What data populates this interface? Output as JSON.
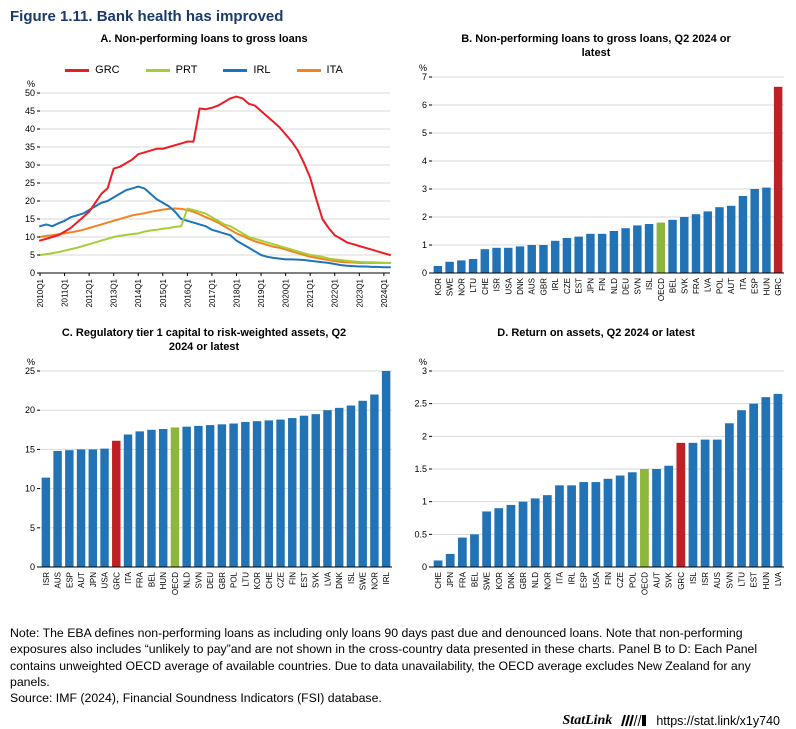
{
  "figure": {
    "title": "Figure 1.11. Bank health has improved"
  },
  "colors": {
    "bar": "#2273b5",
    "grc_red": "#bf2026",
    "oecd_green": "#8db63c",
    "title_navy": "#1a3a6b"
  },
  "chart_data": [
    {
      "panel": "A",
      "type": "line",
      "title": "A. Non-performing loans to gross loans",
      "ylabel": "%",
      "ylim": [
        0,
        50
      ],
      "ytick_step": 5,
      "x_tick_every": 4,
      "x_tick_labels": [
        "2010Q1",
        "2011Q1",
        "2012Q1",
        "2013Q1",
        "2014Q1",
        "2015Q1",
        "2016Q1",
        "2017Q1",
        "2018Q1",
        "2019Q1",
        "2020Q1",
        "2021Q1",
        "2022Q1",
        "2023Q1",
        "2024Q1"
      ],
      "legend_position": "top",
      "grid": true,
      "series": [
        {
          "name": "GRC",
          "color": "#ed1c24",
          "values": [
            9.0,
            9.5,
            10.0,
            10.5,
            11.5,
            12.5,
            14.0,
            15.5,
            17.0,
            19.5,
            22.0,
            23.5,
            29.0,
            29.5,
            30.5,
            31.5,
            33.0,
            33.5,
            34.0,
            34.5,
            34.5,
            35.0,
            35.5,
            36.0,
            36.5,
            36.5,
            45.7,
            45.5,
            45.9,
            46.5,
            47.5,
            48.5,
            49.0,
            48.5,
            47.0,
            46.5,
            45.0,
            43.5,
            42.0,
            40.5,
            38.5,
            36.5,
            34.0,
            30.5,
            26.5,
            20.5,
            15.0,
            12.5,
            10.5,
            9.5,
            8.5,
            8.0,
            7.5,
            7.0,
            6.5,
            6.0,
            5.5,
            5.0
          ]
        },
        {
          "name": "PRT",
          "color": "#a6ce39",
          "values": [
            5.0,
            5.2,
            5.5,
            5.8,
            6.2,
            6.6,
            7.0,
            7.5,
            8.0,
            8.5,
            9.0,
            9.5,
            10.0,
            10.3,
            10.6,
            10.8,
            11.0,
            11.5,
            11.8,
            12.0,
            12.3,
            12.5,
            12.8,
            13.0,
            17.9,
            17.5,
            17.0,
            16.5,
            15.5,
            14.5,
            13.5,
            13.0,
            12.0,
            11.0,
            10.0,
            9.5,
            9.0,
            8.5,
            8.0,
            7.5,
            7.0,
            6.5,
            6.0,
            5.5,
            5.0,
            4.8,
            4.5,
            4.0,
            3.8,
            3.6,
            3.4,
            3.2,
            3.1,
            3.0,
            3.0,
            2.9,
            2.8,
            2.8
          ]
        },
        {
          "name": "IRL",
          "color": "#1b75bb",
          "values": [
            13.0,
            13.5,
            13.0,
            13.8,
            14.5,
            15.5,
            16.0,
            16.5,
            17.5,
            18.5,
            19.5,
            20.0,
            21.0,
            22.0,
            23.0,
            23.5,
            24.0,
            23.5,
            22.0,
            20.5,
            19.5,
            18.5,
            17.0,
            15.0,
            14.5,
            14.0,
            13.5,
            13.0,
            12.0,
            11.5,
            11.0,
            10.5,
            9.0,
            8.0,
            7.0,
            6.0,
            5.0,
            4.5,
            4.2,
            4.0,
            3.8,
            3.8,
            3.7,
            3.6,
            3.4,
            3.2,
            3.0,
            2.8,
            2.5,
            2.2,
            2.0,
            1.9,
            1.8,
            1.8,
            1.7,
            1.7,
            1.6,
            1.6
          ]
        },
        {
          "name": "ITA",
          "color": "#f58220",
          "values": [
            10.0,
            10.3,
            10.5,
            10.8,
            11.0,
            11.3,
            11.6,
            12.0,
            12.5,
            13.0,
            13.5,
            14.0,
            14.5,
            15.0,
            15.5,
            16.0,
            16.3,
            16.6,
            17.0,
            17.3,
            17.6,
            17.8,
            17.9,
            17.8,
            17.5,
            17.0,
            16.3,
            15.5,
            14.8,
            14.0,
            13.0,
            12.0,
            11.0,
            10.3,
            9.5,
            8.8,
            8.3,
            7.8,
            7.3,
            7.0,
            6.5,
            6.0,
            5.5,
            5.0,
            4.5,
            4.2,
            3.9,
            3.6,
            3.3,
            3.1,
            3.0,
            2.9,
            2.8,
            2.8,
            2.8,
            2.8,
            2.8,
            2.8
          ]
        }
      ]
    },
    {
      "panel": "B",
      "type": "bar",
      "title": "B. Non-performing loans to gross loans, Q2 2024 or latest",
      "ylabel": "%",
      "ylim": [
        0,
        7
      ],
      "ytick_step": 1,
      "grid": true,
      "categories": [
        "KOR",
        "SWE",
        "NOR",
        "LTU",
        "CHE",
        "ISR",
        "USA",
        "DNK",
        "AUS",
        "GBR",
        "IRL",
        "CZE",
        "EST",
        "JPN",
        "FIN",
        "NLD",
        "DEU",
        "SVN",
        "ISL",
        "OECD",
        "BEL",
        "SVK",
        "FRA",
        "LVA",
        "POL",
        "AUT",
        "ITA",
        "ESP",
        "HUN",
        "GRC"
      ],
      "values": [
        0.25,
        0.4,
        0.45,
        0.5,
        0.85,
        0.9,
        0.9,
        0.95,
        1.0,
        1.0,
        1.15,
        1.25,
        1.3,
        1.4,
        1.4,
        1.5,
        1.6,
        1.7,
        1.75,
        1.8,
        1.9,
        2.0,
        2.1,
        2.2,
        2.35,
        2.4,
        2.75,
        3.0,
        3.05,
        6.65
      ],
      "highlight": {
        "OECD": "#8db63c",
        "GRC": "#bf2026"
      }
    },
    {
      "panel": "C",
      "type": "bar",
      "title": "C. Regulatory tier 1 capital to risk-weighted assets, Q2 2024 or latest",
      "ylabel": "%",
      "ylim": [
        0,
        25
      ],
      "ytick_step": 5,
      "grid": true,
      "categories": [
        "ISR",
        "AUS",
        "ESP",
        "AUT",
        "JPN",
        "USA",
        "GRC",
        "ITA",
        "FRA",
        "BEL",
        "HUN",
        "OECD",
        "NLD",
        "SVN",
        "DEU",
        "GBR",
        "POL",
        "LTU",
        "KOR",
        "CHE",
        "CZE",
        "FIN",
        "EST",
        "SVK",
        "LVA",
        "DNK",
        "ISL",
        "SWE",
        "NOR",
        "IRL"
      ],
      "values": [
        11.4,
        14.8,
        14.9,
        15.0,
        15.0,
        15.1,
        16.1,
        16.9,
        17.3,
        17.5,
        17.6,
        17.8,
        17.9,
        18.0,
        18.1,
        18.2,
        18.3,
        18.5,
        18.6,
        18.7,
        18.8,
        19.0,
        19.3,
        19.5,
        20.0,
        20.3,
        20.6,
        21.2,
        22.0,
        25.0
      ],
      "highlight": {
        "OECD": "#8db63c",
        "GRC": "#bf2026"
      }
    },
    {
      "panel": "D",
      "type": "bar",
      "title": "D. Return on assets, Q2 2024 or latest",
      "ylabel": "%",
      "ylim": [
        0,
        3
      ],
      "ytick_step": 0.5,
      "grid": true,
      "categories": [
        "CHE",
        "JPN",
        "FRA",
        "BEL",
        "SWE",
        "KOR",
        "DNK",
        "GBR",
        "NLD",
        "NOR",
        "ITA",
        "IRL",
        "ESP",
        "USA",
        "FIN",
        "CZE",
        "POL",
        "OECD",
        "AUT",
        "SVK",
        "GRC",
        "ISL",
        "ISR",
        "AUS",
        "SVN",
        "LTU",
        "EST",
        "HUN",
        "LVA"
      ],
      "values": [
        0.1,
        0.2,
        0.45,
        0.5,
        0.85,
        0.9,
        0.95,
        1.0,
        1.05,
        1.1,
        1.25,
        1.25,
        1.3,
        1.3,
        1.35,
        1.4,
        1.45,
        1.5,
        1.5,
        1.55,
        1.9,
        1.9,
        1.95,
        1.95,
        2.2,
        2.4,
        2.5,
        2.6,
        2.65
      ],
      "highlight": {
        "OECD": "#8db63c",
        "GRC": "#bf2026"
      }
    }
  ],
  "note": {
    "text": "Note: The EBA defines non-performing loans as including only loans 90 days past due and denounced loans. Note that non-performing exposures also includes “unlikely to pay”and are not shown in the cross-country data presented in these charts. Panel B to D: Each Panel contains unweighted OECD average of available countries. Due to data unavailability, the OECD average excludes New Zealand for any panels.",
    "source": "Source: IMF (2024), Financial Soundness Indicators (FSI) database."
  },
  "statlink": {
    "label": "StatLink",
    "url": "https://stat.link/x1y740"
  }
}
